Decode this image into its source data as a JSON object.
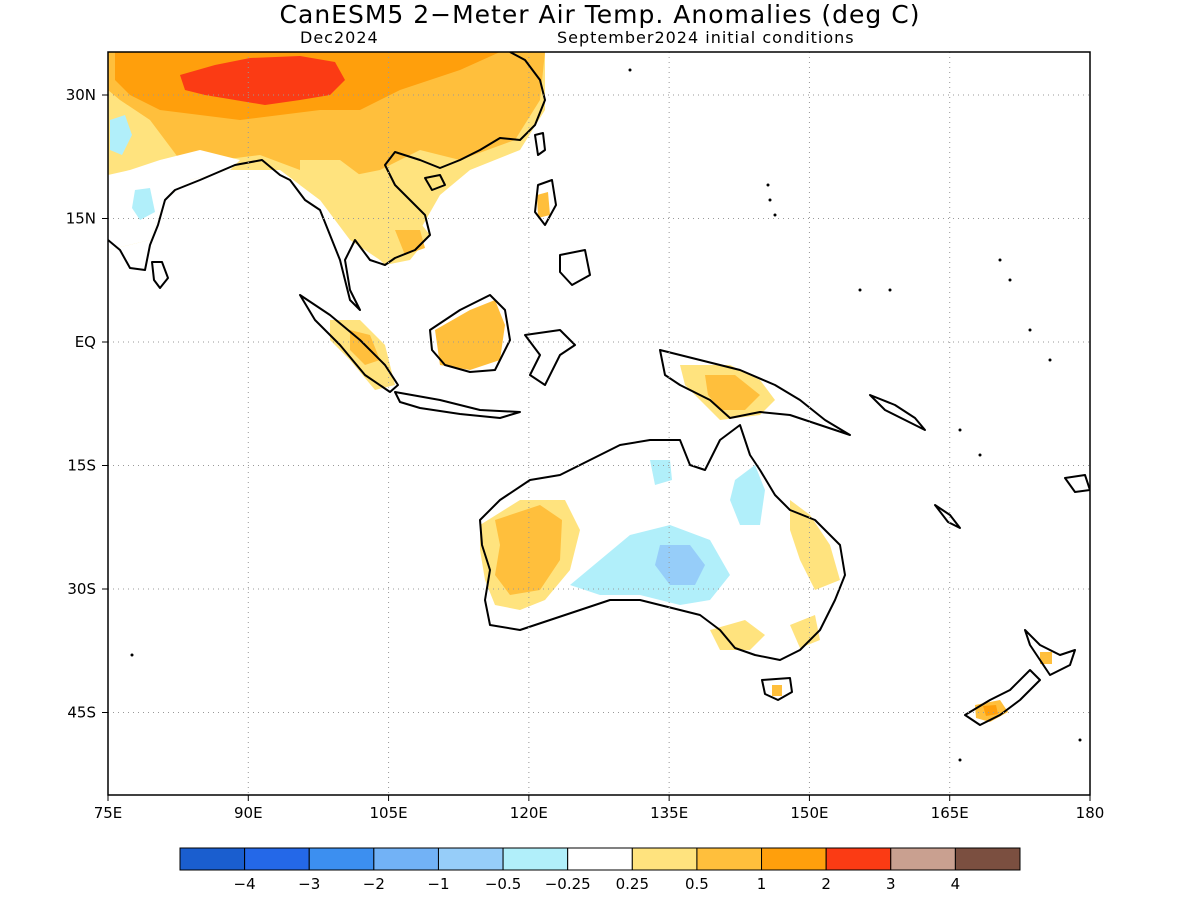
{
  "title": "CanESM5 2−Meter Air Temp. Anomalies (deg C)",
  "subtitle_left": "Dec2024",
  "subtitle_right": "September2024 initial conditions",
  "map": {
    "lon_range": [
      75,
      180
    ],
    "lat_range": [
      -48,
      35
    ],
    "x_ticks": [
      {
        "value": 75,
        "label": "75E"
      },
      {
        "value": 90,
        "label": "90E"
      },
      {
        "value": 105,
        "label": "105E"
      },
      {
        "value": 120,
        "label": "120E"
      },
      {
        "value": 135,
        "label": "135E"
      },
      {
        "value": 150,
        "label": "150E"
      },
      {
        "value": 165,
        "label": "165E"
      },
      {
        "value": 180,
        "label": "180"
      }
    ],
    "y_ticks": [
      {
        "value": 30,
        "label": "30N"
      },
      {
        "value": 15,
        "label": "15N"
      },
      {
        "value": 0,
        "label": "EQ"
      },
      {
        "value": -15,
        "label": "15S"
      },
      {
        "value": -30,
        "label": "30S"
      },
      {
        "value": -45,
        "label": "45S"
      }
    ],
    "grid": "dotted"
  },
  "colorbar": {
    "colors": [
      "#1a5ecf",
      "#2468e8",
      "#3c8ff0",
      "#72b2f6",
      "#96cdf9",
      "#b1effa",
      "#ffffff",
      "#ffe37e",
      "#ffbf3c",
      "#ff9f0c",
      "#fb3b14",
      "#c9a090",
      "#7b4f40"
    ],
    "labels": [
      "−4",
      "−3",
      "−2",
      "−1",
      "−0.5",
      "−0.25",
      "0.25",
      "0.5",
      "1",
      "2",
      "3",
      "4"
    ]
  }
}
